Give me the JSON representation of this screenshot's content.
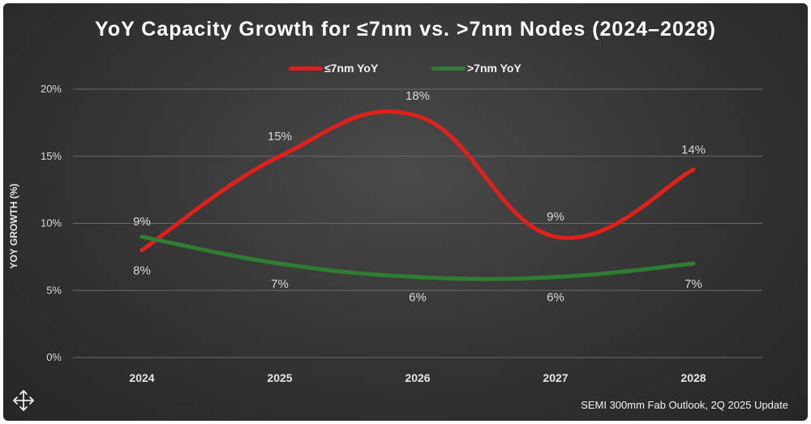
{
  "chart_data": {
    "type": "line",
    "title": "YoY Capacity Growth for ≤7nm vs. >7nm Nodes (2024–2028)",
    "xlabel": "",
    "ylabel": "YOY GROWTH (%)",
    "categories": [
      "2024",
      "2025",
      "2026",
      "2027",
      "2028"
    ],
    "ylim": [
      0,
      20
    ],
    "yticks": [
      "0%",
      "5%",
      "10%",
      "15%",
      "20%"
    ],
    "grid": true,
    "legend_position": "top-center",
    "series": [
      {
        "name": "≤7nm YoY",
        "color": "#e0201b",
        "values": [
          8,
          15,
          18,
          9,
          14
        ],
        "labels": [
          "8%",
          "15%",
          "18%",
          "9%",
          "14%"
        ]
      },
      {
        "name": ">7nm YoY",
        "color": "#2e7d32",
        "values": [
          9,
          7,
          6,
          6,
          7
        ],
        "labels": [
          "9%",
          "7%",
          "6%",
          "6%",
          "7%"
        ]
      }
    ]
  },
  "source_note": "SEMI 300mm Fab Outlook, 2Q 2025 Update",
  "icons": {
    "move": "move-arrows-icon"
  }
}
